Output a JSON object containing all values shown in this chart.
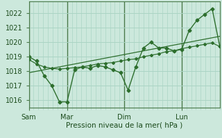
{
  "background_color": "#cce8dc",
  "grid_color": "#aad4c4",
  "line_color": "#2d6e2d",
  "marker_color": "#2d6e2d",
  "xlabel": "Pression niveau de la mer( hPa )",
  "ylim": [
    1015.5,
    1022.8
  ],
  "yticks": [
    1016,
    1017,
    1018,
    1019,
    1020,
    1021,
    1022
  ],
  "day_labels": [
    "Sam",
    "Mar",
    "Dim",
    "Lun"
  ],
  "day_positions": [
    0.0,
    0.2,
    0.5,
    0.8
  ],
  "vline_positions": [
    0.0,
    0.2,
    0.5,
    0.8
  ],
  "xlim": [
    0.0,
    1.0
  ],
  "series1_x": [
    0.0,
    0.04,
    0.08,
    0.12,
    0.16,
    0.2,
    0.24,
    0.28,
    0.32,
    0.36,
    0.4,
    0.44,
    0.48,
    0.52,
    0.56,
    0.6,
    0.64,
    0.68,
    0.72,
    0.76,
    0.8,
    0.84,
    0.88,
    0.92,
    0.96,
    1.0
  ],
  "series1_y": [
    1019.0,
    1018.7,
    1017.7,
    1017.0,
    1015.9,
    1015.9,
    1018.1,
    1018.3,
    1018.2,
    1018.4,
    1018.3,
    1018.1,
    1017.9,
    1016.7,
    1018.3,
    1019.6,
    1020.0,
    1019.6,
    1019.6,
    1019.4,
    1019.5,
    1020.8,
    1021.5,
    1021.9,
    1022.3,
    1019.7
  ],
  "series2_x": [
    0.0,
    0.04,
    0.08,
    0.12,
    0.16,
    0.2,
    0.24,
    0.28,
    0.32,
    0.36,
    0.4,
    0.44,
    0.48,
    0.52,
    0.56,
    0.6,
    0.64,
    0.68,
    0.72,
    0.76,
    0.8,
    0.84,
    0.88,
    0.92,
    0.96,
    1.0
  ],
  "series2_y": [
    1018.8,
    1018.5,
    1018.3,
    1018.2,
    1018.15,
    1018.2,
    1018.25,
    1018.3,
    1018.4,
    1018.5,
    1018.55,
    1018.6,
    1018.7,
    1018.8,
    1018.85,
    1019.0,
    1019.1,
    1019.2,
    1019.35,
    1019.4,
    1019.55,
    1019.65,
    1019.75,
    1019.85,
    1019.95,
    1019.7
  ],
  "series3_x": [
    0.0,
    1.0
  ],
  "series3_y": [
    1017.9,
    1020.4
  ],
  "minor_xticks_count": 40
}
